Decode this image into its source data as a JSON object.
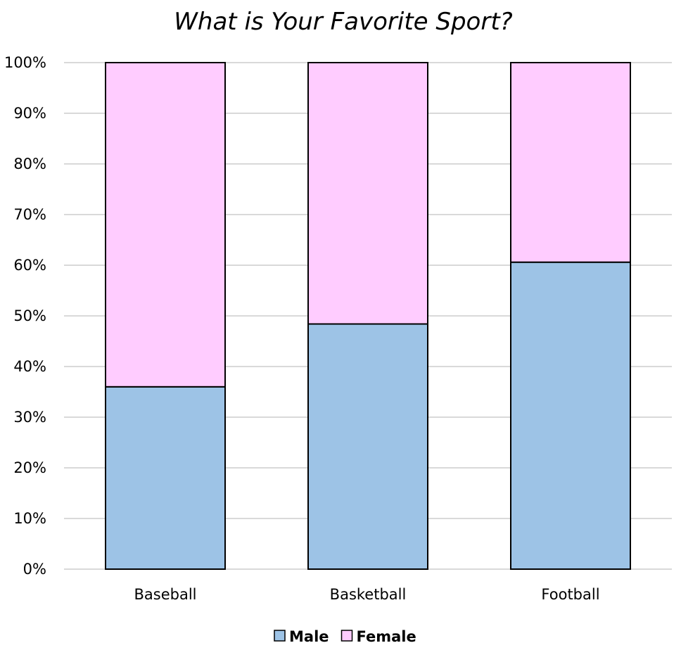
{
  "chart_data": {
    "type": "bar",
    "stacked": "percent",
    "title": "What is Your Favorite Sport?",
    "xlabel": "",
    "ylabel": "",
    "categories": [
      "Baseball",
      "Basketball",
      "Football"
    ],
    "series": [
      {
        "name": "Male",
        "values": [
          36.0,
          48.4,
          60.6
        ],
        "color": "#9DC3E6"
      },
      {
        "name": "Female",
        "values": [
          64.0,
          51.6,
          39.4
        ],
        "color": "#FFCCFF"
      }
    ],
    "ylim": [
      0,
      100
    ],
    "yticks": [
      "0%",
      "10%",
      "20%",
      "30%",
      "40%",
      "50%",
      "60%",
      "70%",
      "80%",
      "90%",
      "100%"
    ],
    "grid": true,
    "gridColor": "#D9D9D9",
    "legend": "bottom"
  }
}
